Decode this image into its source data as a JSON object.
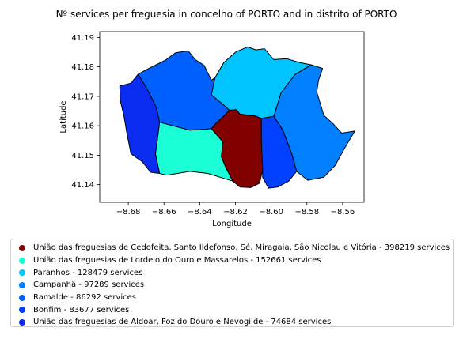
{
  "chart_data": {
    "type": "choropleth map",
    "title": "Nº services per freguesia in concelho of PORTO and in distrito of PORTO",
    "xlabel": "Longitude",
    "ylabel": "Latitude",
    "xlim": [
      -8.696,
      -8.548
    ],
    "ylim": [
      41.134,
      41.192
    ],
    "xticks": [
      -8.68,
      -8.66,
      -8.64,
      -8.62,
      -8.6,
      -8.58,
      -8.56
    ],
    "xtick_labels": [
      "−8.68",
      "−8.66",
      "−8.64",
      "−8.62",
      "−8.60",
      "−8.58",
      "−8.56"
    ],
    "yticks": [
      41.14,
      41.15,
      41.16,
      41.17,
      41.18,
      41.19
    ],
    "ytick_labels": [
      "41.14",
      "41.15",
      "41.16",
      "41.17",
      "41.18",
      "41.19"
    ],
    "grid": false,
    "legend_position": "below",
    "regions": [
      {
        "label": "União das freguesias de Cedofeita, Santo Ildefonso, Sé, Miragaia, São Nicolau e Vitória - 398219 services",
        "value": 398219,
        "color": "#800000",
        "outline": [
          [
            -8.6235,
            41.1653
          ],
          [
            -8.6195,
            41.1655
          ],
          [
            -8.6175,
            41.164
          ],
          [
            -8.613,
            41.1636
          ],
          [
            -8.6085,
            41.1633
          ],
          [
            -8.6055,
            41.1625
          ],
          [
            -8.6055,
            41.155
          ],
          [
            -8.6048,
            41.145
          ],
          [
            -8.6065,
            41.1405
          ],
          [
            -8.6115,
            41.139
          ],
          [
            -8.6175,
            41.1392
          ],
          [
            -8.6215,
            41.1412
          ],
          [
            -8.6252,
            41.1455
          ],
          [
            -8.628,
            41.1495
          ],
          [
            -8.627,
            41.1545
          ],
          [
            -8.6335,
            41.159
          ],
          [
            -8.6315,
            41.1605
          ],
          [
            -8.6268,
            41.1632
          ]
        ]
      },
      {
        "label": "União das freguesias de Lordelo do Ouro e Massarelos - 152661 services",
        "value": 152661,
        "color": "#1affd5",
        "outline": [
          [
            -8.6625,
            41.1612
          ],
          [
            -8.6455,
            41.1585
          ],
          [
            -8.6335,
            41.159
          ],
          [
            -8.627,
            41.1545
          ],
          [
            -8.628,
            41.1495
          ],
          [
            -8.6252,
            41.1455
          ],
          [
            -8.6215,
            41.1412
          ],
          [
            -8.6355,
            41.1438
          ],
          [
            -8.6455,
            41.1445
          ],
          [
            -8.6585,
            41.1432
          ],
          [
            -8.6625,
            41.1438
          ],
          [
            -8.6648,
            41.1505
          ],
          [
            -8.6635,
            41.1562
          ]
        ]
      },
      {
        "label": "Paranhos - 128479 services",
        "value": 128479,
        "color": "#00c4ff",
        "outline": [
          [
            -8.6315,
            41.1763
          ],
          [
            -8.6265,
            41.1815
          ],
          [
            -8.6195,
            41.1852
          ],
          [
            -8.6132,
            41.1868
          ],
          [
            -8.6085,
            41.1858
          ],
          [
            -8.6038,
            41.1862
          ],
          [
            -8.5985,
            41.1825
          ],
          [
            -8.5912,
            41.1828
          ],
          [
            -8.5842,
            41.1815
          ],
          [
            -8.5775,
            41.1807
          ],
          [
            -8.5865,
            41.1775
          ],
          [
            -8.5945,
            41.1712
          ],
          [
            -8.5985,
            41.1632
          ],
          [
            -8.6055,
            41.1625
          ],
          [
            -8.6085,
            41.1633
          ],
          [
            -8.613,
            41.1636
          ],
          [
            -8.6175,
            41.164
          ],
          [
            -8.6195,
            41.1655
          ],
          [
            -8.6235,
            41.1653
          ],
          [
            -8.6275,
            41.1675
          ],
          [
            -8.6335,
            41.1705
          ]
        ]
      },
      {
        "label": "Campanhã - 97289 services",
        "value": 97289,
        "color": "#0080ff",
        "outline": [
          [
            -8.5945,
            41.1712
          ],
          [
            -8.5865,
            41.1775
          ],
          [
            -8.5775,
            41.1807
          ],
          [
            -8.5712,
            41.1795
          ],
          [
            -8.5735,
            41.1755
          ],
          [
            -8.5745,
            41.1715
          ],
          [
            -8.5705,
            41.1635
          ],
          [
            -8.5655,
            41.1608
          ],
          [
            -8.5605,
            41.1575
          ],
          [
            -8.5532,
            41.1582
          ],
          [
            -8.5588,
            41.1525
          ],
          [
            -8.5642,
            41.1465
          ],
          [
            -8.5705,
            41.1425
          ],
          [
            -8.5795,
            41.1415
          ],
          [
            -8.5858,
            41.1445
          ],
          [
            -8.5885,
            41.1505
          ],
          [
            -8.5935,
            41.1585
          ],
          [
            -8.5985,
            41.1632
          ]
        ]
      },
      {
        "label": "Ramalde - 86292 services",
        "value": 86292,
        "color": "#0060ff",
        "outline": [
          [
            -8.6745,
            41.1775
          ],
          [
            -8.6685,
            41.1795
          ],
          [
            -8.6595,
            41.1822
          ],
          [
            -8.6535,
            41.1848
          ],
          [
            -8.6465,
            41.1855
          ],
          [
            -8.6425,
            41.1825
          ],
          [
            -8.6375,
            41.1805
          ],
          [
            -8.6335,
            41.1755
          ],
          [
            -8.6315,
            41.1763
          ],
          [
            -8.6335,
            41.1705
          ],
          [
            -8.6275,
            41.1675
          ],
          [
            -8.6235,
            41.1653
          ],
          [
            -8.6268,
            41.1632
          ],
          [
            -8.6315,
            41.1605
          ],
          [
            -8.6335,
            41.159
          ],
          [
            -8.6455,
            41.1585
          ],
          [
            -8.6625,
            41.1612
          ],
          [
            -8.6645,
            41.1665
          ],
          [
            -8.6695,
            41.1725
          ]
        ]
      },
      {
        "label": "Bonfim - 83677 services",
        "value": 83677,
        "color": "#0040ff",
        "outline": [
          [
            -8.5985,
            41.1632
          ],
          [
            -8.5935,
            41.1585
          ],
          [
            -8.5885,
            41.1505
          ],
          [
            -8.5858,
            41.1445
          ],
          [
            -8.5902,
            41.1412
          ],
          [
            -8.5962,
            41.1392
          ],
          [
            -8.6015,
            41.1388
          ],
          [
            -8.6048,
            41.1425
          ],
          [
            -8.6048,
            41.145
          ],
          [
            -8.6055,
            41.155
          ],
          [
            -8.6055,
            41.1625
          ]
        ]
      },
      {
        "label": "União das freguesias de Aldoar, Foz do Douro e Nevogilde - 74684 services",
        "value": 74684,
        "color": "#0a2cf0",
        "outline": [
          [
            -8.6848,
            41.1735
          ],
          [
            -8.6785,
            41.1745
          ],
          [
            -8.6745,
            41.1775
          ],
          [
            -8.6695,
            41.1725
          ],
          [
            -8.6645,
            41.1665
          ],
          [
            -8.6625,
            41.1612
          ],
          [
            -8.6635,
            41.1562
          ],
          [
            -8.6648,
            41.1505
          ],
          [
            -8.6625,
            41.1438
          ],
          [
            -8.6675,
            41.1442
          ],
          [
            -8.6722,
            41.1478
          ],
          [
            -8.6785,
            41.1505
          ],
          [
            -8.6808,
            41.1575
          ],
          [
            -8.6825,
            41.1635
          ],
          [
            -8.6845,
            41.1685
          ]
        ]
      }
    ]
  }
}
